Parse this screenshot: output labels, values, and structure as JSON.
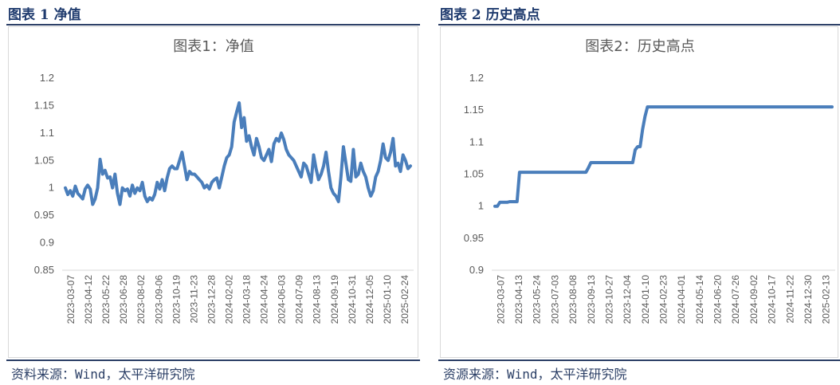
{
  "figure_left": {
    "heading": "图表 1 净值",
    "source": "资料来源：Wind，太平洋研究院"
  },
  "figure_right": {
    "heading": "图表 2 历史高点",
    "source": "资源来源：Wind，太平洋研究院"
  },
  "colors": {
    "line": "#4a7ebb",
    "axis": "#d9d9d9",
    "heading": "#1f3b6e"
  },
  "chart_data": [
    {
      "type": "line",
      "title": "图表1：净值",
      "ylim": [
        0.85,
        1.2
      ],
      "yticks": [
        "0.85",
        "0.9",
        "0.95",
        "1",
        "1.05",
        "1.1",
        "1.15",
        "1.2"
      ],
      "yticks_values": [
        0.85,
        0.9,
        0.95,
        1.0,
        1.05,
        1.1,
        1.15,
        1.2
      ],
      "x_tick_labels": [
        "2023-03-07",
        "2023-04-12",
        "2023-05-22",
        "2023-06-28",
        "2023-08-02",
        "2023-09-06",
        "2023-10-19",
        "2023-11-23",
        "2023-12-28",
        "2024-02-02",
        "2024-03-18",
        "2024-04-24",
        "2024-06-03",
        "2024-07-09",
        "2024-08-13",
        "2024-09-19",
        "2024-10-31",
        "2024-12-05",
        "2025-01-10",
        "2025-02-24"
      ],
      "grid": false,
      "series": [
        {
          "values": [
            1.0,
            0.988,
            0.995,
            0.985,
            1.003,
            0.99,
            0.985,
            0.98,
            0.998,
            1.005,
            0.998,
            0.97,
            0.98,
            1.0,
            1.052,
            1.025,
            1.032,
            1.018,
            1.02,
            1.0,
            1.025,
            0.99,
            0.97,
            1.0,
            0.995,
            0.998,
            0.985,
            1.005,
            0.99,
            1.0,
            0.995,
            1.01,
            0.985,
            0.975,
            0.982,
            0.978,
            0.988,
            1.01,
            0.998,
            1.015,
            0.995,
            1.018,
            1.035,
            1.04,
            1.035,
            1.035,
            1.05,
            1.065,
            1.04,
            1.015,
            1.03,
            1.025,
            1.025,
            1.02,
            1.015,
            1.01,
            1.0,
            1.005,
            0.998,
            1.01,
            1.015,
            1.018,
            1.0,
            1.02,
            1.04,
            1.055,
            1.06,
            1.075,
            1.12,
            1.138,
            1.155,
            1.11,
            1.128,
            1.085,
            1.095,
            1.075,
            1.06,
            1.09,
            1.075,
            1.055,
            1.05,
            1.06,
            1.07,
            1.048,
            1.08,
            1.09,
            1.085,
            1.1,
            1.088,
            1.07,
            1.06,
            1.055,
            1.05,
            1.04,
            1.03,
            1.02,
            1.045,
            1.04,
            1.025,
            1.01,
            1.06,
            1.035,
            1.015,
            1.025,
            1.04,
            1.065,
            1.03,
            1.0,
            0.99,
            0.985,
            0.975,
            1.02,
            1.075,
            1.045,
            1.015,
            1.012,
            1.07,
            1.02,
            1.025,
            1.045,
            1.03,
            1.02,
            1.0,
            0.985,
            0.995,
            1.02,
            1.03,
            1.05,
            1.08,
            1.055,
            1.05,
            1.065,
            1.09,
            1.04,
            1.045,
            1.03,
            1.06,
            1.05,
            1.035,
            1.04
          ]
        }
      ]
    },
    {
      "type": "line",
      "title": "图表2：历史高点",
      "ylim": [
        0.9,
        1.2
      ],
      "yticks": [
        "0.9",
        "0.95",
        "1",
        "1.05",
        "1.1",
        "1.15",
        "1.2"
      ],
      "yticks_values": [
        0.9,
        0.95,
        1.0,
        1.05,
        1.1,
        1.15,
        1.2
      ],
      "x_tick_labels": [
        "2023-03-07",
        "2023-04-13",
        "2023-05-24",
        "2023-07-03",
        "2023-08-08",
        "2023-09-13",
        "2023-10-27",
        "2023-12-04",
        "2024-01-10",
        "2024-02-23",
        "2024-04-01",
        "2024-05-14",
        "2024-06-20",
        "2024-07-26",
        "2024-09-02",
        "2024-10-17",
        "2024-11-22",
        "2024-12-30",
        "2025-02-13"
      ],
      "grid": false,
      "series": [
        {
          "values": [
            1.0,
            1.0,
            1.006,
            1.006,
            1.006,
            1.006,
            1.007,
            1.007,
            1.007,
            1.007,
            1.053,
            1.053,
            1.053,
            1.053,
            1.053,
            1.053,
            1.053,
            1.053,
            1.053,
            1.053,
            1.053,
            1.053,
            1.053,
            1.053,
            1.053,
            1.053,
            1.053,
            1.053,
            1.053,
            1.053,
            1.053,
            1.053,
            1.053,
            1.053,
            1.053,
            1.053,
            1.053,
            1.053,
            1.06,
            1.068,
            1.068,
            1.068,
            1.068,
            1.068,
            1.068,
            1.068,
            1.068,
            1.068,
            1.068,
            1.068,
            1.068,
            1.068,
            1.068,
            1.068,
            1.068,
            1.068,
            1.068,
            1.088,
            1.093,
            1.093,
            1.12,
            1.14,
            1.155,
            1.155,
            1.155,
            1.155,
            1.155,
            1.155,
            1.155,
            1.155,
            1.155,
            1.155,
            1.155,
            1.155,
            1.155,
            1.155,
            1.155,
            1.155,
            1.155,
            1.155,
            1.155,
            1.155,
            1.155,
            1.155,
            1.155,
            1.155,
            1.155,
            1.155,
            1.155,
            1.155,
            1.155,
            1.155,
            1.155,
            1.155,
            1.155,
            1.155,
            1.155,
            1.155,
            1.155,
            1.155,
            1.155,
            1.155,
            1.155,
            1.155,
            1.155,
            1.155,
            1.155,
            1.155,
            1.155,
            1.155,
            1.155,
            1.155,
            1.155,
            1.155,
            1.155,
            1.155,
            1.155,
            1.155,
            1.155,
            1.155,
            1.155,
            1.155,
            1.155,
            1.155,
            1.155,
            1.155,
            1.155,
            1.155,
            1.155,
            1.155,
            1.155,
            1.155,
            1.155,
            1.155,
            1.155,
            1.155,
            1.155,
            1.155
          ]
        }
      ]
    }
  ]
}
